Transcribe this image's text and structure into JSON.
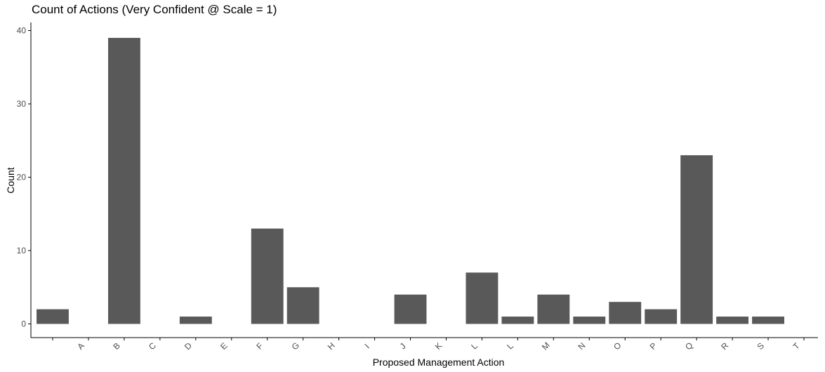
{
  "chart_data": {
    "type": "bar",
    "title": "Count of Actions (Very Confident @ Scale = 1)",
    "xlabel": "Proposed Management Action",
    "ylabel": "Count",
    "categories": [
      "",
      "A",
      "B",
      "C",
      "D",
      "E",
      "F",
      "G",
      "H",
      "I",
      "J",
      "K",
      "L",
      "L",
      "M",
      "N",
      "O",
      "P",
      "Q",
      "R",
      "S",
      "T"
    ],
    "values": [
      2,
      0,
      39,
      0,
      1,
      0,
      13,
      5,
      0,
      0,
      4,
      0,
      7,
      1,
      4,
      1,
      3,
      2,
      23,
      1,
      1,
      0
    ],
    "ylim": [
      0,
      41
    ],
    "yticks": [
      0,
      10,
      20,
      30,
      40
    ],
    "grid": false,
    "legend": "none",
    "bar_color": "#595959"
  }
}
